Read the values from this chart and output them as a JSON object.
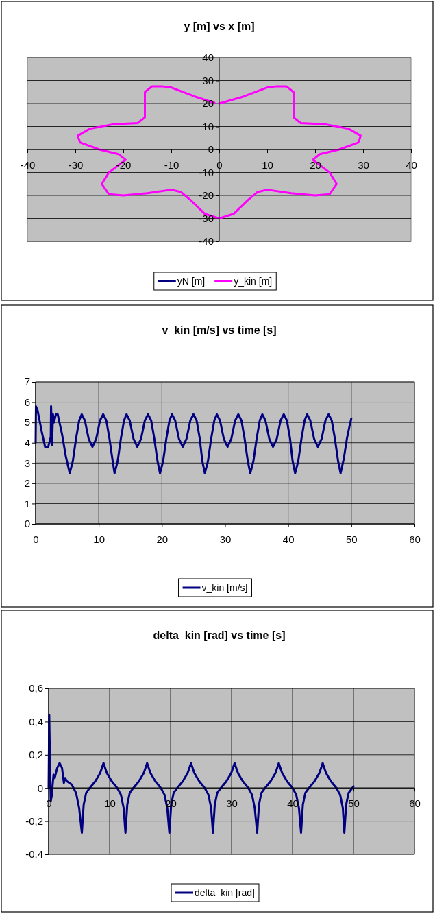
{
  "chart_data": [
    {
      "type": "line",
      "title": "y [m] vs x [m]",
      "xlim": [
        -40,
        40
      ],
      "xticks": [
        -40,
        -30,
        -20,
        -10,
        0,
        10,
        20,
        30,
        40
      ],
      "ylim": [
        -40,
        40
      ],
      "yticks": [
        -40,
        -30,
        -20,
        -10,
        0,
        10,
        20,
        30,
        40
      ],
      "grid": "y",
      "legend": "bottom",
      "series": [
        {
          "name": "yN [m]",
          "color": "#000080"
        },
        {
          "name": "y_kin [m]",
          "color": "#ff00ff",
          "x": [
            0,
            5,
            10,
            12,
            14,
            15.5,
            15.5,
            15.5,
            17,
            22,
            27,
            29.5,
            29,
            25,
            21,
            19.5,
            20.5,
            23,
            24.5,
            23,
            20,
            15,
            10,
            8,
            6,
            3,
            0,
            -3,
            -6,
            -8,
            -10,
            -15,
            -20,
            -23,
            -24.5,
            -23,
            -20.5,
            -19.5,
            -21,
            -25,
            -29,
            -29.5,
            -27,
            -22,
            -17,
            -15.5,
            -15.5,
            -15.5,
            -14,
            -12,
            -10,
            -5,
            -1
          ],
          "values": [
            20,
            23,
            27,
            27.5,
            27.5,
            25,
            18,
            14,
            11.5,
            11,
            9,
            6,
            3,
            0,
            -2,
            -4.5,
            -6,
            -10,
            -15,
            -19.5,
            -20,
            -19,
            -17.5,
            -18.5,
            -22,
            -28,
            -30,
            -28,
            -22,
            -18.5,
            -17.5,
            -19,
            -20,
            -19.5,
            -15,
            -10,
            -6,
            -4.5,
            -2,
            0,
            3,
            6,
            9,
            11,
            11.5,
            14,
            18,
            25,
            27.5,
            27.5,
            27,
            23,
            20.3
          ]
        }
      ]
    },
    {
      "type": "line",
      "title": "v_kin [m/s] vs time [s]",
      "xlim": [
        0,
        60
      ],
      "xticks": [
        0,
        10,
        20,
        30,
        40,
        50,
        60
      ],
      "ylim": [
        0,
        7
      ],
      "yticks": [
        0,
        1,
        2,
        3,
        4,
        5,
        6,
        7
      ],
      "grid": true,
      "legend": "bottom",
      "series": [
        {
          "name": "v_kin [m/s]",
          "color": "#000080",
          "x": [
            0,
            0.05,
            0.3,
            0.5,
            1.0,
            1.5,
            2.0,
            2.4,
            2.45,
            2.6,
            2.75,
            2.9,
            3.2,
            3.5,
            4.2,
            4.8,
            5.4,
            5.9,
            6.4,
            6.9,
            7.3,
            7.8,
            8.4,
            9.0,
            9.6,
            10.2,
            10.7,
            11.2,
            11.7,
            12.2,
            12.5,
            13.0,
            13.5,
            14.0,
            14.4,
            14.9,
            15.5,
            16.1,
            16.7,
            17.3,
            17.8,
            18.3,
            18.8,
            19.3,
            19.7,
            20.2,
            20.7,
            21.2,
            21.6,
            22.1,
            22.7,
            23.3,
            23.9,
            24.5,
            25.0,
            25.5,
            26.0,
            26.4,
            26.8,
            27.3,
            27.8,
            28.3,
            28.7,
            29.2,
            29.8,
            30.4,
            31.0,
            31.6,
            32.1,
            32.6,
            33.1,
            33.6,
            34.0,
            34.5,
            35.0,
            35.5,
            35.9,
            36.4,
            37.0,
            37.6,
            38.2,
            38.8,
            39.3,
            39.8,
            40.3,
            40.7,
            41.1,
            41.6,
            42.1,
            42.6,
            43.0,
            43.5,
            44.1,
            44.7,
            45.3,
            45.9,
            46.4,
            46.9,
            47.4,
            47.9,
            48.3,
            48.8,
            49.3,
            49.7,
            50.0
          ],
          "values": [
            4.0,
            5.8,
            5.6,
            5.3,
            4.5,
            3.8,
            3.8,
            4.3,
            5.8,
            3.9,
            5.4,
            5.0,
            5.4,
            5.4,
            4.4,
            3.3,
            2.5,
            3.1,
            4.2,
            5.1,
            5.4,
            5.1,
            4.2,
            3.8,
            4.2,
            5.1,
            5.4,
            5.1,
            4.2,
            3.1,
            2.5,
            3.1,
            4.2,
            5.1,
            5.4,
            5.1,
            4.2,
            3.8,
            4.2,
            5.1,
            5.4,
            5.1,
            4.2,
            3.1,
            2.5,
            3.1,
            4.2,
            5.1,
            5.4,
            5.1,
            4.2,
            3.8,
            4.2,
            5.1,
            5.4,
            5.1,
            4.2,
            3.1,
            2.5,
            3.1,
            4.2,
            5.1,
            5.4,
            5.1,
            4.2,
            3.8,
            4.2,
            5.1,
            5.4,
            5.1,
            4.2,
            3.1,
            2.5,
            3.1,
            4.2,
            5.1,
            5.4,
            5.1,
            4.2,
            3.8,
            4.2,
            5.1,
            5.4,
            5.1,
            4.2,
            3.1,
            2.5,
            3.1,
            4.2,
            5.1,
            5.4,
            5.1,
            4.2,
            3.8,
            4.2,
            5.1,
            5.4,
            5.1,
            4.2,
            3.1,
            2.5,
            3.2,
            4.2,
            4.8,
            5.2
          ]
        }
      ]
    },
    {
      "type": "line",
      "title": "delta_kin [rad] vs time [s]",
      "xlim": [
        0,
        60
      ],
      "xticks": [
        0,
        10,
        20,
        30,
        40,
        50,
        60
      ],
      "ylim": [
        -0.4,
        0.6
      ],
      "yticks": [
        {
          "value": -0.4,
          "label": "-0,4"
        },
        {
          "value": -0.2,
          "label": "-0,2"
        },
        0,
        {
          "value": 0.2,
          "label": "0,2"
        },
        {
          "value": 0.4,
          "label": "0,4"
        },
        {
          "value": 0.6,
          "label": "0,6"
        }
      ],
      "grid": true,
      "legend": "bottom",
      "series": [
        {
          "name": "delta_kin [rad]",
          "color": "#000080",
          "x": [
            0,
            0.1,
            0.2,
            0.35,
            0.5,
            0.8,
            1.0,
            1.4,
            1.8,
            2.2,
            2.5,
            2.7,
            3.0,
            3.8,
            4.5,
            5.0,
            5.45,
            5.75,
            6.15,
            6.75,
            7.65,
            8.45,
            9.0,
            9.55,
            10.35,
            11.25,
            11.85,
            12.3,
            12.6,
            12.9,
            13.3,
            13.9,
            14.8,
            15.6,
            16.15,
            16.7,
            17.5,
            18.4,
            19.0,
            19.45,
            19.8,
            20.1,
            20.5,
            21.1,
            22.0,
            22.8,
            23.35,
            23.9,
            24.7,
            25.6,
            26.2,
            26.65,
            26.95,
            27.25,
            27.65,
            28.25,
            29.15,
            29.95,
            30.5,
            31.05,
            31.85,
            32.75,
            33.35,
            33.8,
            34.2,
            34.5,
            34.9,
            35.5,
            36.4,
            37.2,
            37.75,
            38.3,
            39.1,
            40.0,
            40.6,
            41.05,
            41.4,
            41.7,
            42.1,
            42.7,
            43.6,
            44.4,
            44.95,
            45.5,
            46.3,
            47.2,
            47.8,
            48.25,
            48.5,
            48.8,
            49.2,
            49.6,
            50.0
          ],
          "values": [
            0,
            0.44,
            0.2,
            -0.08,
            -0.05,
            0.08,
            0.06,
            0.12,
            0.15,
            0.12,
            0.03,
            0.06,
            0.04,
            0.02,
            -0.03,
            -0.12,
            -0.27,
            -0.1,
            -0.03,
            0,
            0.04,
            0.09,
            0.15,
            0.09,
            0.04,
            0,
            -0.04,
            -0.12,
            -0.27,
            -0.1,
            -0.03,
            0,
            0.04,
            0.09,
            0.15,
            0.09,
            0.04,
            0,
            -0.04,
            -0.12,
            -0.27,
            -0.1,
            -0.03,
            0,
            0.04,
            0.09,
            0.15,
            0.09,
            0.04,
            0,
            -0.04,
            -0.12,
            -0.27,
            -0.1,
            -0.03,
            0,
            0.04,
            0.09,
            0.15,
            0.09,
            0.04,
            0,
            -0.04,
            -0.12,
            -0.27,
            -0.1,
            -0.03,
            0,
            0.04,
            0.09,
            0.15,
            0.09,
            0.04,
            0,
            -0.04,
            -0.12,
            -0.27,
            -0.1,
            -0.03,
            0,
            0.04,
            0.09,
            0.15,
            0.09,
            0.04,
            0,
            -0.04,
            -0.12,
            -0.27,
            -0.1,
            -0.03,
            -0.01,
            0.01
          ]
        }
      ]
    }
  ]
}
